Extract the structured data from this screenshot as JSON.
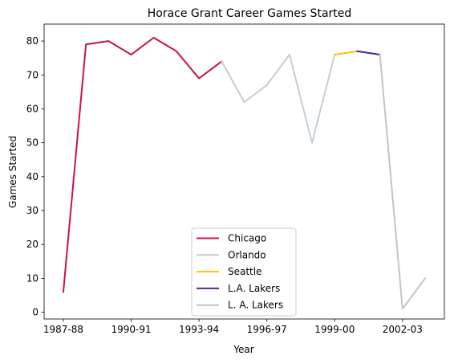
{
  "chart_data": {
    "type": "line",
    "title": "Horace Grant Career Games Started",
    "xlabel": "Year",
    "ylabel": "Games Started",
    "x": [
      "1987-88",
      "1988-89",
      "1989-90",
      "1990-91",
      "1991-92",
      "1992-93",
      "1993-94",
      "1994-95",
      "1995-96",
      "1996-97",
      "1997-98",
      "1998-99",
      "1999-00",
      "2000-01",
      "2001-02",
      "2002-03",
      "2003-04"
    ],
    "xticks": [
      "1987-88",
      "1990-91",
      "1993-94",
      "1996-97",
      "1999-00",
      "2002-03"
    ],
    "yticks": [
      0,
      10,
      20,
      30,
      40,
      50,
      60,
      70,
      80
    ],
    "ylim": [
      -2,
      85
    ],
    "grid": false,
    "legend_position": "bottom-center",
    "series": [
      {
        "name": "Chicago",
        "color": "#CE1141",
        "x": [
          "1987-88",
          "1988-89",
          "1989-90",
          "1990-91",
          "1991-92",
          "1992-93",
          "1993-94",
          "1994-95"
        ],
        "values": [
          6,
          79,
          80,
          76,
          81,
          77,
          69,
          74
        ]
      },
      {
        "name": "Orlando",
        "color": "#C4CED4",
        "x": [
          "1994-95",
          "1995-96",
          "1996-97",
          "1997-98",
          "1998-99",
          "1999-00"
        ],
        "values": [
          74,
          62,
          67,
          76,
          50,
          76
        ]
      },
      {
        "name": "Seattle",
        "color": "#FFC200",
        "x": [
          "1999-00",
          "2000-01"
        ],
        "values": [
          76,
          77
        ]
      },
      {
        "name": "L.A. Lakers",
        "color": "#552583",
        "x": [
          "2000-01",
          "2001-02"
        ],
        "values": [
          77,
          76
        ]
      },
      {
        "name": "L. A. Lakers",
        "color": "#C4C4C4",
        "x": [
          "2001-02",
          "2002-03",
          "2003-04"
        ],
        "values": [
          76,
          1,
          10
        ]
      }
    ]
  }
}
